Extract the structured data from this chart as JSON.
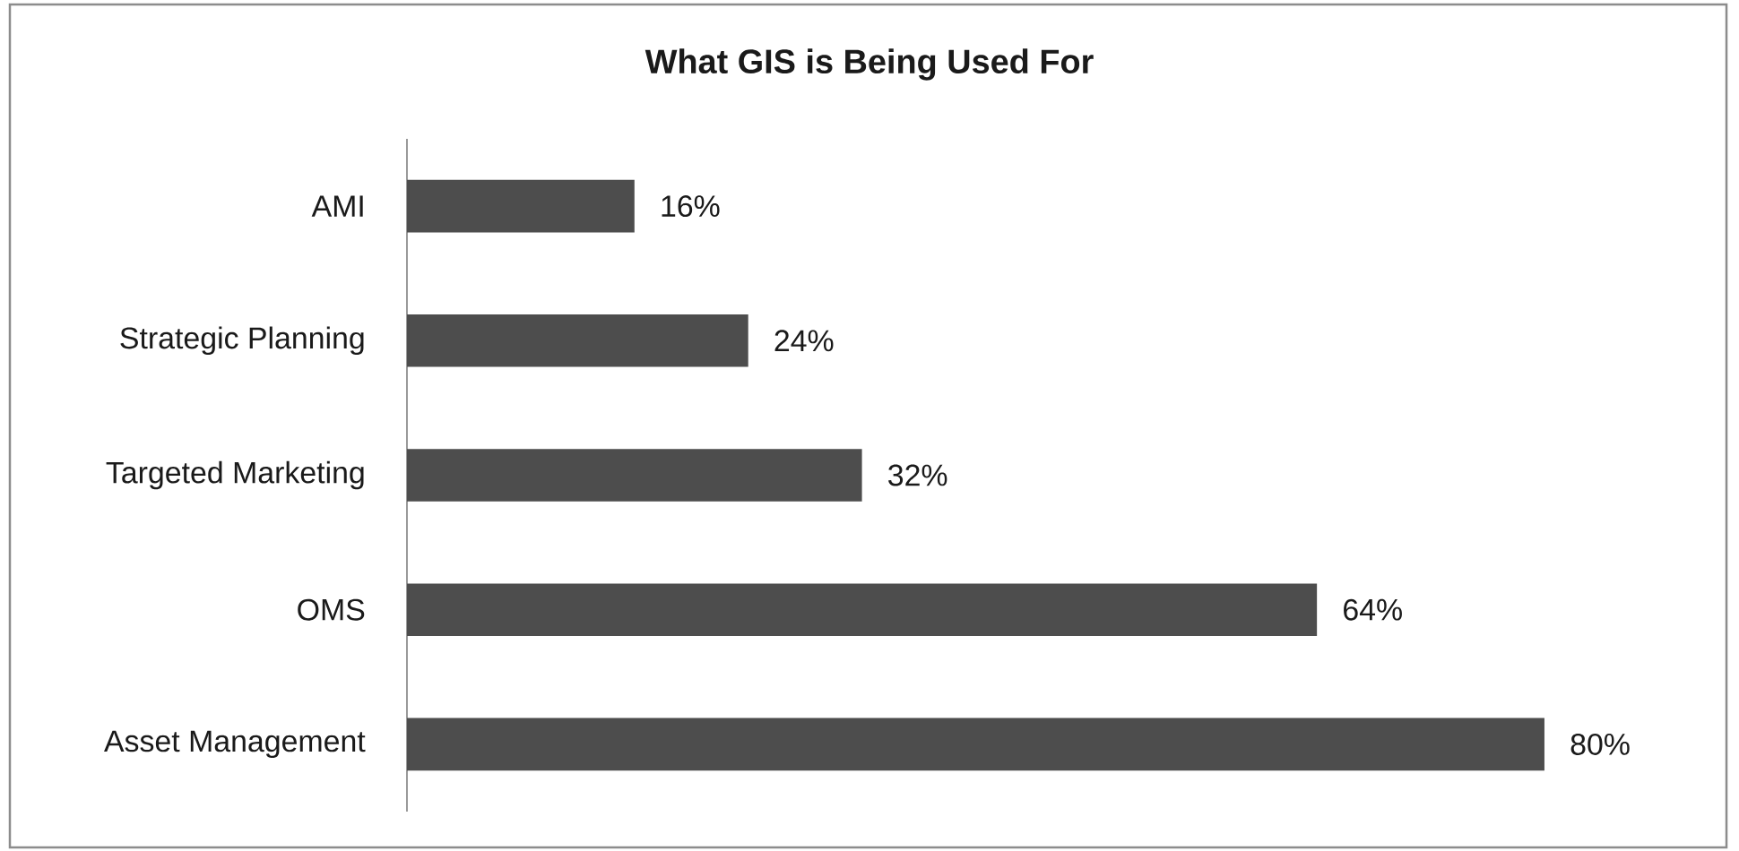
{
  "chart_data": {
    "type": "bar",
    "orientation": "horizontal",
    "title": "What GIS is Being Used For",
    "categories": [
      "AMI",
      "Strategic Planning",
      "Targeted Marketing",
      "OMS",
      "Asset Management"
    ],
    "values": [
      16,
      24,
      32,
      64,
      80
    ],
    "value_labels": [
      "16%",
      "24%",
      "32%",
      "64%",
      "80%"
    ],
    "color": "#4d4d4d",
    "tick_labels": "y"
  }
}
